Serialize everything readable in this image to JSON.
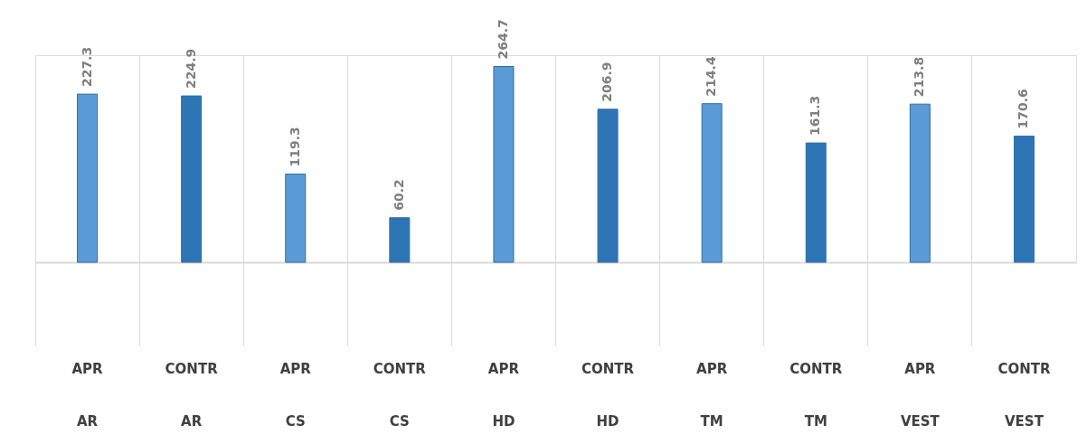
{
  "chart_data": {
    "type": "bar",
    "categories": [
      "APR\nAR",
      "CONTR\nAR",
      "APR\nCS",
      "CONTR\nCS",
      "APR\nHD",
      "CONTR\nHD",
      "APR\nTM",
      "CONTR\nTM",
      "APR\nVEST",
      "CONTR\nVEST"
    ],
    "values": [
      227.3,
      224.9,
      119.3,
      60.2,
      264.7,
      206.9,
      214.4,
      161.3,
      213.8,
      170.6
    ],
    "colors": [
      "#5b9bd5",
      "#2e75b6",
      "#5b9bd5",
      "#2e75b6",
      "#5b9bd5",
      "#2e75b6",
      "#5b9bd5",
      "#2e75b6",
      "#5b9bd5",
      "#2e75b6"
    ],
    "data_labels": true
  }
}
